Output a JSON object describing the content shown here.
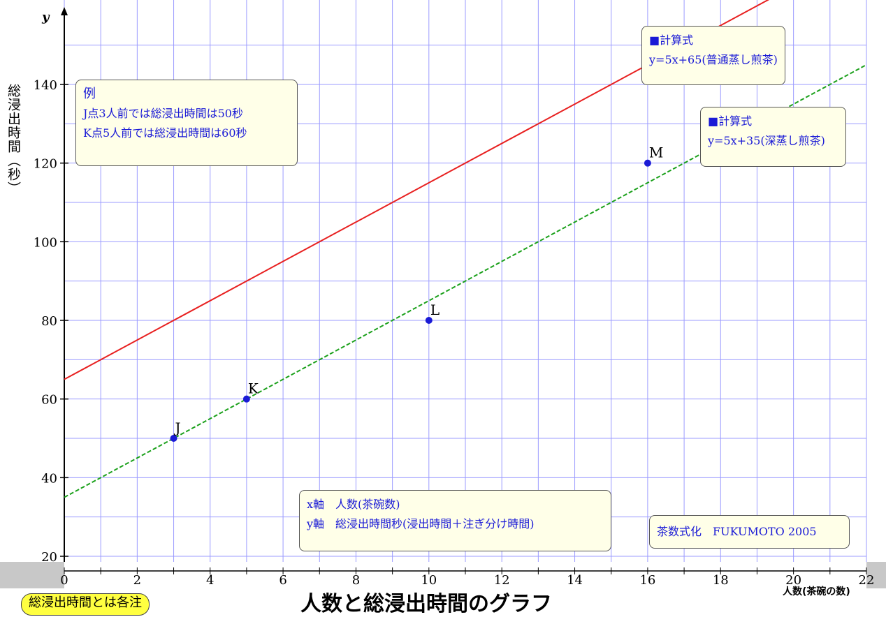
{
  "chart_data": {
    "type": "line",
    "xlim": [
      0,
      22
    ],
    "ylim": [
      20,
      155
    ],
    "x_ticks": [
      0,
      2,
      4,
      6,
      8,
      10,
      12,
      14,
      16,
      18,
      20,
      22
    ],
    "x_tick_labels": [
      "0",
      "2",
      "4",
      "6",
      "8",
      "10",
      "12",
      "14",
      "16",
      "18",
      "20",
      "22"
    ],
    "y_ticks": [
      20,
      40,
      60,
      80,
      100,
      120,
      140
    ],
    "y_tick_labels": [
      "20",
      "40",
      "60",
      "80",
      "100",
      "120",
      "140"
    ],
    "grid": true,
    "y_axis_letter": "y",
    "series": [
      {
        "name": "y=5x+65(普通蒸し煎茶)",
        "slope": 5,
        "intercept": 65,
        "color": "#e82020",
        "style": "solid"
      },
      {
        "name": "y=5x+35(深蒸し煎茶)",
        "slope": 5,
        "intercept": 35,
        "color": "#1aa01a",
        "style": "dashed"
      }
    ],
    "points": [
      {
        "label": "J",
        "x": 3,
        "y": 50
      },
      {
        "label": "K",
        "x": 5,
        "y": 60
      },
      {
        "label": "L",
        "x": 10,
        "y": 80
      },
      {
        "label": "M",
        "x": 16,
        "y": 120
      }
    ],
    "point_color": "#1a1ad6"
  },
  "ylabel": "総浸出時間",
  "ylabel_unit": "（秒）",
  "xlabel": "人数(茶碗の数)",
  "title": "人数と総浸出時間のグラフ",
  "badge": "総浸出時間とは各注",
  "boxes": {
    "example": {
      "title": "例",
      "line1": "J点3人前では総浸出時間は50秒",
      "line2": "K点5人前では総浸出時間は60秒"
    },
    "formula1": {
      "title": "■計算式",
      "formula": "y=5x+65(普通蒸し煎茶)"
    },
    "formula2": {
      "title": "■計算式",
      "formula": "y=5x+35(深蒸し煎茶)"
    },
    "axes": {
      "line1": "x軸　人数(茶碗数)",
      "line2": "y軸　総浸出時間秒(浸出時間＋注ぎ分け時間)"
    },
    "credit": {
      "text": "茶数式化　FUKUMOTO 2005"
    }
  }
}
